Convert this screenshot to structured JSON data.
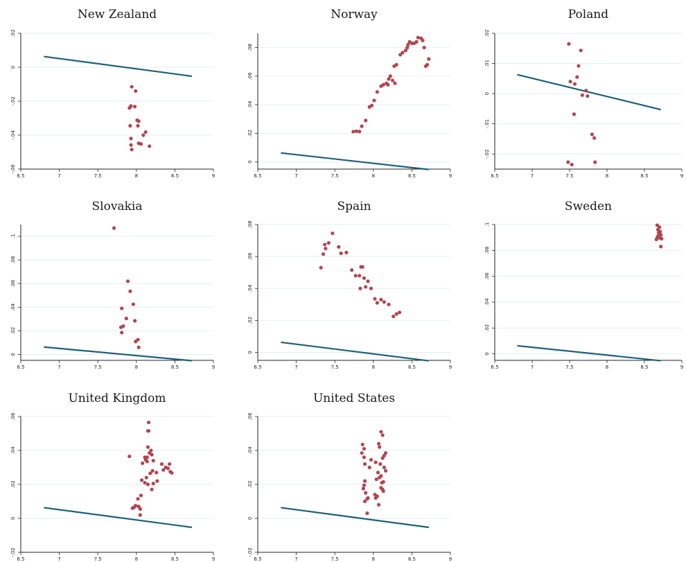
{
  "colors": {
    "points": "#b2454f",
    "fit_line": "#1b5f7a",
    "grid": "#e6eef2",
    "background": "#ffffff"
  },
  "chart_data": [
    {
      "type": "scatter",
      "title": "New Zealand",
      "xlim": [
        6.5,
        9
      ],
      "ylim": [
        -0.06,
        0.02
      ],
      "x_ticks": [
        "6.5",
        "7",
        "7.5",
        "8",
        "8.5",
        "9"
      ],
      "y_ticks": [
        {
          "value": -0.06,
          "label": "-.06"
        },
        {
          "value": -0.04,
          "label": "-.04"
        },
        {
          "value": -0.02,
          "label": "-.02"
        },
        {
          "value": 0,
          "label": "0"
        },
        {
          "value": 0.02,
          "label": ".02"
        }
      ],
      "line": {
        "x": [
          6.8,
          8.72
        ],
        "y": [
          0.0063,
          -0.0053
        ]
      },
      "points": [
        [
          7.94,
          -0.0115
        ],
        [
          7.99,
          -0.014
        ],
        [
          7.93,
          -0.0228
        ],
        [
          7.91,
          -0.024
        ],
        [
          7.98,
          -0.0232
        ],
        [
          8.01,
          -0.0312
        ],
        [
          8.03,
          -0.0318
        ],
        [
          8.02,
          -0.0345
        ],
        [
          7.92,
          -0.0345
        ],
        [
          8.12,
          -0.0382
        ],
        [
          8.09,
          -0.04
        ],
        [
          7.93,
          -0.042
        ],
        [
          8.03,
          -0.0448
        ],
        [
          8.06,
          -0.0452
        ],
        [
          7.93,
          -0.0458
        ],
        [
          8.17,
          -0.0465
        ],
        [
          7.94,
          -0.0485
        ]
      ]
    },
    {
      "type": "scatter",
      "title": "Norway",
      "xlim": [
        6.5,
        9
      ],
      "ylim": [
        -0.005,
        0.09
      ],
      "x_ticks": [
        "6.5",
        "7",
        "7.5",
        "8",
        "8.5",
        "9"
      ],
      "y_ticks": [
        {
          "value": 0,
          "label": "0"
        },
        {
          "value": 0.02,
          "label": ".02"
        },
        {
          "value": 0.04,
          "label": ".04"
        },
        {
          "value": 0.06,
          "label": ".06"
        },
        {
          "value": 0.08,
          "label": ".08"
        }
      ],
      "line": {
        "x": [
          6.8,
          8.72
        ],
        "y": [
          0.0063,
          -0.0053
        ]
      },
      "points": [
        [
          7.74,
          0.0212
        ],
        [
          7.78,
          0.0215
        ],
        [
          7.82,
          0.0213
        ],
        [
          7.85,
          0.025
        ],
        [
          7.9,
          0.029
        ],
        [
          7.95,
          0.0385
        ],
        [
          7.98,
          0.0395
        ],
        [
          8.01,
          0.043
        ],
        [
          8.05,
          0.049
        ],
        [
          8.1,
          0.053
        ],
        [
          8.13,
          0.054
        ],
        [
          8.17,
          0.055
        ],
        [
          8.19,
          0.054
        ],
        [
          8.2,
          0.058
        ],
        [
          8.22,
          0.06
        ],
        [
          8.25,
          0.057
        ],
        [
          8.28,
          0.055
        ],
        [
          8.27,
          0.067
        ],
        [
          8.3,
          0.068
        ],
        [
          8.35,
          0.075
        ],
        [
          8.38,
          0.0765
        ],
        [
          8.42,
          0.078
        ],
        [
          8.44,
          0.08
        ],
        [
          8.45,
          0.082
        ],
        [
          8.47,
          0.084
        ],
        [
          8.5,
          0.083
        ],
        [
          8.53,
          0.083
        ],
        [
          8.56,
          0.084
        ],
        [
          8.58,
          0.087
        ],
        [
          8.62,
          0.0865
        ],
        [
          8.64,
          0.085
        ],
        [
          8.66,
          0.08
        ],
        [
          8.68,
          0.067
        ],
        [
          8.7,
          0.068
        ],
        [
          8.72,
          0.072
        ]
      ]
    },
    {
      "type": "scatter",
      "title": "Poland",
      "xlim": [
        6.5,
        9
      ],
      "ylim": [
        -0.025,
        0.02
      ],
      "x_ticks": [
        "6.5",
        "7",
        "7.5",
        "8",
        "8.5",
        "9"
      ],
      "y_ticks": [
        {
          "value": -0.02,
          "label": "-.02"
        },
        {
          "value": -0.01,
          "label": "-.01"
        },
        {
          "value": 0,
          "label": "0"
        },
        {
          "value": 0.01,
          "label": ".01"
        },
        {
          "value": 0.02,
          "label": ".02"
        }
      ],
      "line": {
        "x": [
          6.8,
          8.72
        ],
        "y": [
          0.0063,
          -0.0053
        ]
      },
      "points": [
        [
          7.49,
          0.0165
        ],
        [
          7.65,
          0.0143
        ],
        [
          7.62,
          0.0092
        ],
        [
          7.6,
          0.0055
        ],
        [
          7.51,
          0.004
        ],
        [
          7.57,
          0.0032
        ],
        [
          7.72,
          0.001
        ],
        [
          7.67,
          -0.0005
        ],
        [
          7.74,
          -0.0008
        ],
        [
          7.56,
          -0.0068
        ],
        [
          7.8,
          -0.0135
        ],
        [
          7.83,
          -0.0147
        ],
        [
          7.48,
          -0.0227
        ],
        [
          7.84,
          -0.0227
        ],
        [
          7.53,
          -0.0235
        ]
      ]
    },
    {
      "type": "scatter",
      "title": "Slovakia",
      "xlim": [
        6.5,
        9
      ],
      "ylim": [
        -0.005,
        0.11
      ],
      "x_ticks": [
        "6.5",
        "7",
        "7.5",
        "8",
        "8.5",
        "9"
      ],
      "y_ticks": [
        {
          "value": 0,
          "label": "0"
        },
        {
          "value": 0.02,
          "label": ".02"
        },
        {
          "value": 0.04,
          "label": ".04"
        },
        {
          "value": 0.06,
          "label": ".06"
        },
        {
          "value": 0.08,
          "label": ".08"
        },
        {
          "value": 0.1,
          "label": ".1"
        }
      ],
      "line": {
        "x": [
          6.8,
          8.72
        ],
        "y": [
          0.0063,
          -0.0053
        ]
      },
      "points": [
        [
          7.71,
          0.107
        ],
        [
          7.89,
          0.062
        ],
        [
          7.92,
          0.0535
        ],
        [
          7.96,
          0.0425
        ],
        [
          7.81,
          0.039
        ],
        [
          7.87,
          0.0305
        ],
        [
          7.98,
          0.0285
        ],
        [
          7.83,
          0.024
        ],
        [
          7.8,
          0.023
        ],
        [
          7.81,
          0.0185
        ],
        [
          8.02,
          0.0125
        ],
        [
          7.99,
          0.011
        ],
        [
          8.03,
          0.006
        ]
      ]
    },
    {
      "type": "scatter",
      "title": "Spain",
      "xlim": [
        6.5,
        9
      ],
      "ylim": [
        -0.005,
        0.08
      ],
      "x_ticks": [
        "6.5",
        "7",
        "7.5",
        "8",
        "8.5",
        "9"
      ],
      "y_ticks": [
        {
          "value": 0,
          "label": "0"
        },
        {
          "value": 0.02,
          "label": ".02"
        },
        {
          "value": 0.04,
          "label": ".04"
        },
        {
          "value": 0.06,
          "label": ".06"
        },
        {
          "value": 0.08,
          "label": ".08"
        }
      ],
      "line": {
        "x": [
          6.8,
          8.72
        ],
        "y": [
          0.0063,
          -0.0053
        ]
      },
      "points": [
        [
          7.32,
          0.053
        ],
        [
          7.35,
          0.0615
        ],
        [
          7.38,
          0.065
        ],
        [
          7.37,
          0.0675
        ],
        [
          7.42,
          0.0685
        ],
        [
          7.47,
          0.0745
        ],
        [
          7.55,
          0.066
        ],
        [
          7.58,
          0.062
        ],
        [
          7.65,
          0.0625
        ],
        [
          7.72,
          0.0515
        ],
        [
          7.77,
          0.048
        ],
        [
          7.82,
          0.048
        ],
        [
          7.84,
          0.0535
        ],
        [
          7.86,
          0.0535
        ],
        [
          7.88,
          0.0465
        ],
        [
          7.83,
          0.04
        ],
        [
          7.9,
          0.041
        ],
        [
          7.93,
          0.0445
        ],
        [
          7.97,
          0.04
        ],
        [
          8.02,
          0.0335
        ],
        [
          8.05,
          0.031
        ],
        [
          8.1,
          0.033
        ],
        [
          8.14,
          0.0315
        ],
        [
          8.2,
          0.03
        ],
        [
          8.26,
          0.0225
        ],
        [
          8.3,
          0.024
        ],
        [
          8.34,
          0.025
        ]
      ]
    },
    {
      "type": "scatter",
      "title": "Sweden",
      "xlim": [
        6.5,
        9
      ],
      "ylim": [
        -0.005,
        0.1
      ],
      "x_ticks": [
        "6.5",
        "7",
        "7.5",
        "8",
        "8.5",
        "9"
      ],
      "y_ticks": [
        {
          "value": 0,
          "label": "0"
        },
        {
          "value": 0.02,
          "label": ".02"
        },
        {
          "value": 0.04,
          "label": ".04"
        },
        {
          "value": 0.06,
          "label": ".06"
        },
        {
          "value": 0.08,
          "label": ".08"
        },
        {
          "value": 0.1,
          "label": ".1"
        }
      ],
      "line": {
        "x": [
          6.8,
          8.72
        ],
        "y": [
          0.0063,
          -0.0053
        ]
      },
      "points": [
        [
          8.67,
          0.0995
        ],
        [
          8.7,
          0.098
        ],
        [
          8.68,
          0.096
        ],
        [
          8.69,
          0.0935
        ],
        [
          8.71,
          0.0945
        ],
        [
          8.72,
          0.092
        ],
        [
          8.68,
          0.091
        ],
        [
          8.67,
          0.0895
        ],
        [
          8.71,
          0.0895
        ],
        [
          8.7,
          0.0905
        ],
        [
          8.73,
          0.089
        ],
        [
          8.66,
          0.0885
        ],
        [
          8.72,
          0.083
        ]
      ]
    },
    {
      "type": "scatter",
      "title": "United Kingdom",
      "xlim": [
        6.5,
        9
      ],
      "ylim": [
        -0.02,
        0.06
      ],
      "x_ticks": [
        "6.5",
        "7",
        "7.5",
        "8",
        "8.5",
        "9"
      ],
      "y_ticks": [
        {
          "value": -0.02,
          "label": "-.02"
        },
        {
          "value": 0,
          "label": "0"
        },
        {
          "value": 0.02,
          "label": ".02"
        },
        {
          "value": 0.04,
          "label": ".04"
        },
        {
          "value": 0.06,
          "label": ".06"
        }
      ],
      "line": {
        "x": [
          6.8,
          8.72
        ],
        "y": [
          0.0063,
          -0.0053
        ]
      },
      "points": [
        [
          8.16,
          0.0565
        ],
        [
          8.15,
          0.0515
        ],
        [
          8.16,
          0.0515
        ],
        [
          8.15,
          0.042
        ],
        [
          8.19,
          0.04
        ],
        [
          8.17,
          0.0385
        ],
        [
          8.2,
          0.0375
        ],
        [
          8.11,
          0.036
        ],
        [
          8.14,
          0.036
        ],
        [
          8.12,
          0.0345
        ],
        [
          8.22,
          0.034
        ],
        [
          8.14,
          0.0335
        ],
        [
          8.08,
          0.0325
        ],
        [
          8.33,
          0.032
        ],
        [
          8.43,
          0.032
        ],
        [
          8.38,
          0.03
        ],
        [
          8.41,
          0.0295
        ],
        [
          8.35,
          0.0285
        ],
        [
          8.21,
          0.028
        ],
        [
          8.26,
          0.027
        ],
        [
          8.44,
          0.0275
        ],
        [
          8.46,
          0.0268
        ],
        [
          8.18,
          0.0265
        ],
        [
          8.13,
          0.024
        ],
        [
          8.07,
          0.0225
        ],
        [
          8.11,
          0.021
        ],
        [
          8.15,
          0.02
        ],
        [
          8.22,
          0.0205
        ],
        [
          8.27,
          0.022
        ],
        [
          8.2,
          0.017
        ],
        [
          8.06,
          0.0135
        ],
        [
          7.91,
          0.0365
        ],
        [
          8.02,
          0.0115
        ],
        [
          8.03,
          0.007
        ],
        [
          7.97,
          0.0065
        ],
        [
          8.05,
          0.0055
        ],
        [
          8.05,
          0.002
        ],
        [
          7.99,
          0.0075
        ],
        [
          7.95,
          0.006
        ]
      ]
    },
    {
      "type": "scatter",
      "title": "United States",
      "xlim": [
        6.5,
        9
      ],
      "ylim": [
        -0.02,
        0.06
      ],
      "x_ticks": [
        "6.5",
        "7",
        "7.5",
        "8",
        "8.5",
        "9"
      ],
      "y_ticks": [
        {
          "value": -0.02,
          "label": "-.02"
        },
        {
          "value": 0,
          "label": "0"
        },
        {
          "value": 0.02,
          "label": ".02"
        },
        {
          "value": 0.04,
          "label": ".04"
        },
        {
          "value": 0.06,
          "label": ".06"
        }
      ],
      "line": {
        "x": [
          6.8,
          8.72
        ],
        "y": [
          0.0063,
          -0.0053
        ]
      },
      "points": [
        [
          8.1,
          0.051
        ],
        [
          8.12,
          0.049
        ],
        [
          8.07,
          0.044
        ],
        [
          7.86,
          0.0435
        ],
        [
          7.88,
          0.041
        ],
        [
          8.08,
          0.042
        ],
        [
          7.85,
          0.0385
        ],
        [
          8.16,
          0.0385
        ],
        [
          8.14,
          0.037
        ],
        [
          7.88,
          0.036
        ],
        [
          8.12,
          0.0355
        ],
        [
          7.97,
          0.0345
        ],
        [
          8.03,
          0.033
        ],
        [
          8.09,
          0.032
        ],
        [
          7.89,
          0.032
        ],
        [
          7.95,
          0.03
        ],
        [
          8.14,
          0.03
        ],
        [
          8.16,
          0.028
        ],
        [
          8.06,
          0.027
        ],
        [
          8.1,
          0.025
        ],
        [
          8.08,
          0.024
        ],
        [
          8.04,
          0.023
        ],
        [
          7.89,
          0.022
        ],
        [
          8.13,
          0.0215
        ],
        [
          8.11,
          0.021
        ],
        [
          7.88,
          0.0195
        ],
        [
          7.87,
          0.0175
        ],
        [
          8.1,
          0.018
        ],
        [
          8.12,
          0.017
        ],
        [
          7.9,
          0.015
        ],
        [
          8.13,
          0.016
        ],
        [
          8.02,
          0.014
        ],
        [
          8.05,
          0.013
        ],
        [
          8.03,
          0.012
        ],
        [
          7.93,
          0.012
        ],
        [
          7.92,
          0.0115
        ],
        [
          7.89,
          0.01
        ],
        [
          8.07,
          0.008
        ],
        [
          7.92,
          0.003
        ]
      ]
    }
  ]
}
